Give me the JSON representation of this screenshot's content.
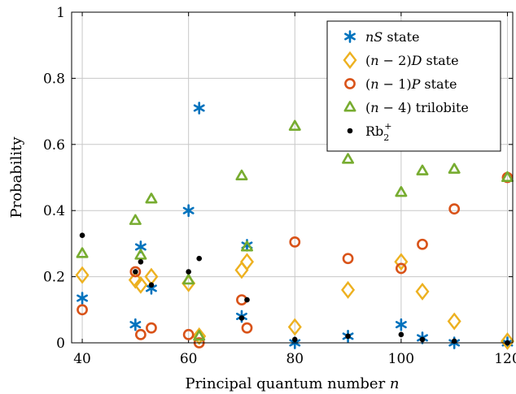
{
  "chart_data": {
    "type": "scatter",
    "xlabel": "Principal quantum number n",
    "ylabel": "Probability",
    "xlim": [
      38,
      121
    ],
    "ylim": [
      0,
      1
    ],
    "xticks": [
      40,
      60,
      80,
      100,
      120
    ],
    "yticks": [
      0,
      0.2,
      0.4,
      0.6,
      0.8,
      1
    ],
    "ytick_labels": [
      "0",
      "0.2",
      "0.4",
      "0.6",
      "0.8",
      "1"
    ],
    "grid": true,
    "legend_position": "top-right",
    "series": [
      {
        "name": "nS state",
        "marker": "asterisk",
        "color": "#0072bd",
        "points": [
          [
            40,
            0.135
          ],
          [
            50,
            0.055
          ],
          [
            51,
            0.29
          ],
          [
            53,
            0.165
          ],
          [
            60,
            0.4
          ],
          [
            62,
            0.71
          ],
          [
            70,
            0.08
          ],
          [
            71,
            0.295
          ],
          [
            80,
            0.0
          ],
          [
            90,
            0.02
          ],
          [
            100,
            0.055
          ],
          [
            104,
            0.015
          ],
          [
            110,
            0.0
          ],
          [
            120,
            0.0
          ]
        ]
      },
      {
        "name": "(n−2)D state",
        "marker": "diamond",
        "color": "#edb120",
        "points": [
          [
            40,
            0.205
          ],
          [
            50,
            0.19
          ],
          [
            51,
            0.175
          ],
          [
            53,
            0.2
          ],
          [
            60,
            0.18
          ],
          [
            62,
            0.02
          ],
          [
            70,
            0.22
          ],
          [
            71,
            0.245
          ],
          [
            80,
            0.048
          ],
          [
            90,
            0.16
          ],
          [
            100,
            0.245
          ],
          [
            104,
            0.155
          ],
          [
            110,
            0.065
          ],
          [
            120,
            0.005
          ]
        ]
      },
      {
        "name": "(n−1)P state",
        "marker": "circle",
        "color": "#d95319",
        "points": [
          [
            40,
            0.1
          ],
          [
            50,
            0.215
          ],
          [
            51,
            0.025
          ],
          [
            53,
            0.045
          ],
          [
            60,
            0.025
          ],
          [
            62,
            0.0
          ],
          [
            70,
            0.13
          ],
          [
            71,
            0.045
          ],
          [
            80,
            0.305
          ],
          [
            90,
            0.255
          ],
          [
            100,
            0.225
          ],
          [
            104,
            0.298
          ],
          [
            110,
            0.405
          ],
          [
            120,
            0.5
          ]
        ]
      },
      {
        "name": "(n−4) trilobite",
        "marker": "triangle",
        "color": "#77ac30",
        "points": [
          [
            40,
            0.27
          ],
          [
            50,
            0.37
          ],
          [
            51,
            0.265
          ],
          [
            53,
            0.435
          ],
          [
            60,
            0.19
          ],
          [
            62,
            0.02
          ],
          [
            70,
            0.505
          ],
          [
            71,
            0.29
          ],
          [
            80,
            0.655
          ],
          [
            90,
            0.555
          ],
          [
            100,
            0.455
          ],
          [
            104,
            0.52
          ],
          [
            110,
            0.525
          ],
          [
            120,
            0.5
          ]
        ]
      },
      {
        "name": "Rb2+",
        "marker": "dot",
        "color": "#000000",
        "points": [
          [
            40,
            0.325
          ],
          [
            50,
            0.215
          ],
          [
            51,
            0.245
          ],
          [
            53,
            0.175
          ],
          [
            60,
            0.215
          ],
          [
            62,
            0.255
          ],
          [
            70,
            0.075
          ],
          [
            71,
            0.13
          ],
          [
            80,
            0.01
          ],
          [
            90,
            0.02
          ],
          [
            100,
            0.025
          ],
          [
            104,
            0.01
          ],
          [
            110,
            0.005
          ],
          [
            120,
            0.0
          ]
        ]
      }
    ]
  }
}
